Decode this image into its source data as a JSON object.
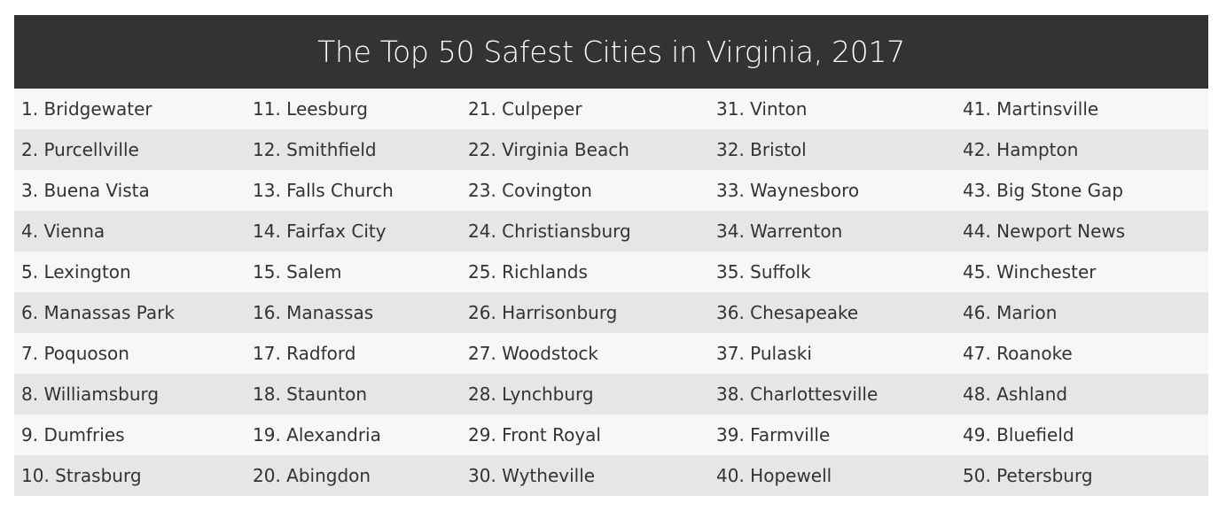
{
  "title": "The Top 50 Safest Cities in Virginia, 2017",
  "rows": [
    [
      "1. Bridgewater",
      "11. Leesburg",
      "21. Culpeper",
      "31. Vinton",
      "41. Martinsville"
    ],
    [
      "2. Purcellville",
      "12. Smithfield",
      "22. Virginia Beach",
      "32. Bristol",
      "42. Hampton"
    ],
    [
      "3. Buena Vista",
      "13. Falls Church",
      "23. Covington",
      "33. Waynesboro",
      "43. Big Stone Gap"
    ],
    [
      "4. Vienna",
      "14. Fairfax City",
      "24. Christiansburg",
      "34. Warrenton",
      "44. Newport News"
    ],
    [
      "5. Lexington",
      "15. Salem",
      "25. Richlands",
      "35. Suffolk",
      "45. Winchester"
    ],
    [
      "6. Manassas Park",
      "16. Manassas",
      "26. Harrisonburg",
      "36. Chesapeake",
      "46. Marion"
    ],
    [
      "7. Poquoson",
      "17. Radford",
      "27. Woodstock",
      "37. Pulaski",
      "47. Roanoke"
    ],
    [
      "8. Williamsburg",
      "18. Staunton",
      "28. Lynchburg",
      "38. Charlottesville",
      "48. Ashland"
    ],
    [
      "9. Dumfries",
      "19. Alexandria",
      "29. Front Royal",
      "39. Farmville",
      "49. Bluefield"
    ],
    [
      "10. Strasburg",
      "20. Abingdon",
      "30. Wytheville",
      "40. Hopewell",
      "50. Petersburg"
    ]
  ],
  "colors": {
    "header_bg": "#333333",
    "row_light": "#f7f7f7",
    "row_dark": "#e6e6e6",
    "text": "#333333"
  }
}
